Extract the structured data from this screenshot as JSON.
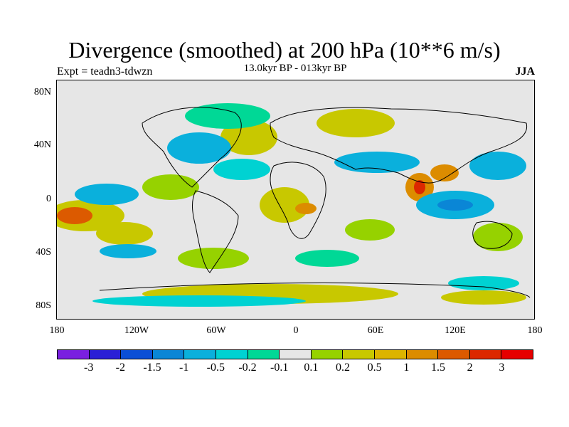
{
  "title": "Divergence (smoothed) at 200 hPa (10**6 m/s)",
  "subtitle_left": "Expt = teadn3-tdwzn",
  "subtitle_center": "13.0kyr BP - 013kyr BP",
  "subtitle_right": "JJA",
  "lat_labels": [
    "80N",
    "40N",
    "0",
    "40S",
    "80S"
  ],
  "lon_labels": [
    "180",
    "120W",
    "60W",
    "0",
    "60E",
    "120E",
    "180"
  ],
  "colorbar": {
    "labels": [
      "-3",
      "-2",
      "-1.5",
      "-1",
      "-0.5",
      "-0.2",
      "-0.1",
      "0.1",
      "0.2",
      "0.5",
      "1",
      "1.5",
      "2",
      "3"
    ],
    "colors": [
      "#7a1fe0",
      "#2a1fd6",
      "#0a4fd6",
      "#0a86d6",
      "#0ab0dc",
      "#00d2d2",
      "#00d896",
      "#e6e6e6",
      "#96d200",
      "#c8c800",
      "#dcb400",
      "#dc8c00",
      "#dc5a00",
      "#dc2800",
      "#e60000"
    ]
  },
  "chart_data": {
    "type": "heatmap",
    "title": "Divergence (smoothed) at 200 hPa (10**6 m/s)",
    "experiment": "teadn3-tdwzn",
    "period": "13.0kyr BP - 013kyr BP",
    "season": "JJA",
    "lon_range": [
      -180,
      180
    ],
    "lat_range": [
      -90,
      90
    ],
    "contour_levels": [
      -3,
      -2,
      -1.5,
      -1,
      -0.5,
      -0.2,
      -0.1,
      0.1,
      0.2,
      0.5,
      1,
      1.5,
      2,
      3
    ]
  }
}
